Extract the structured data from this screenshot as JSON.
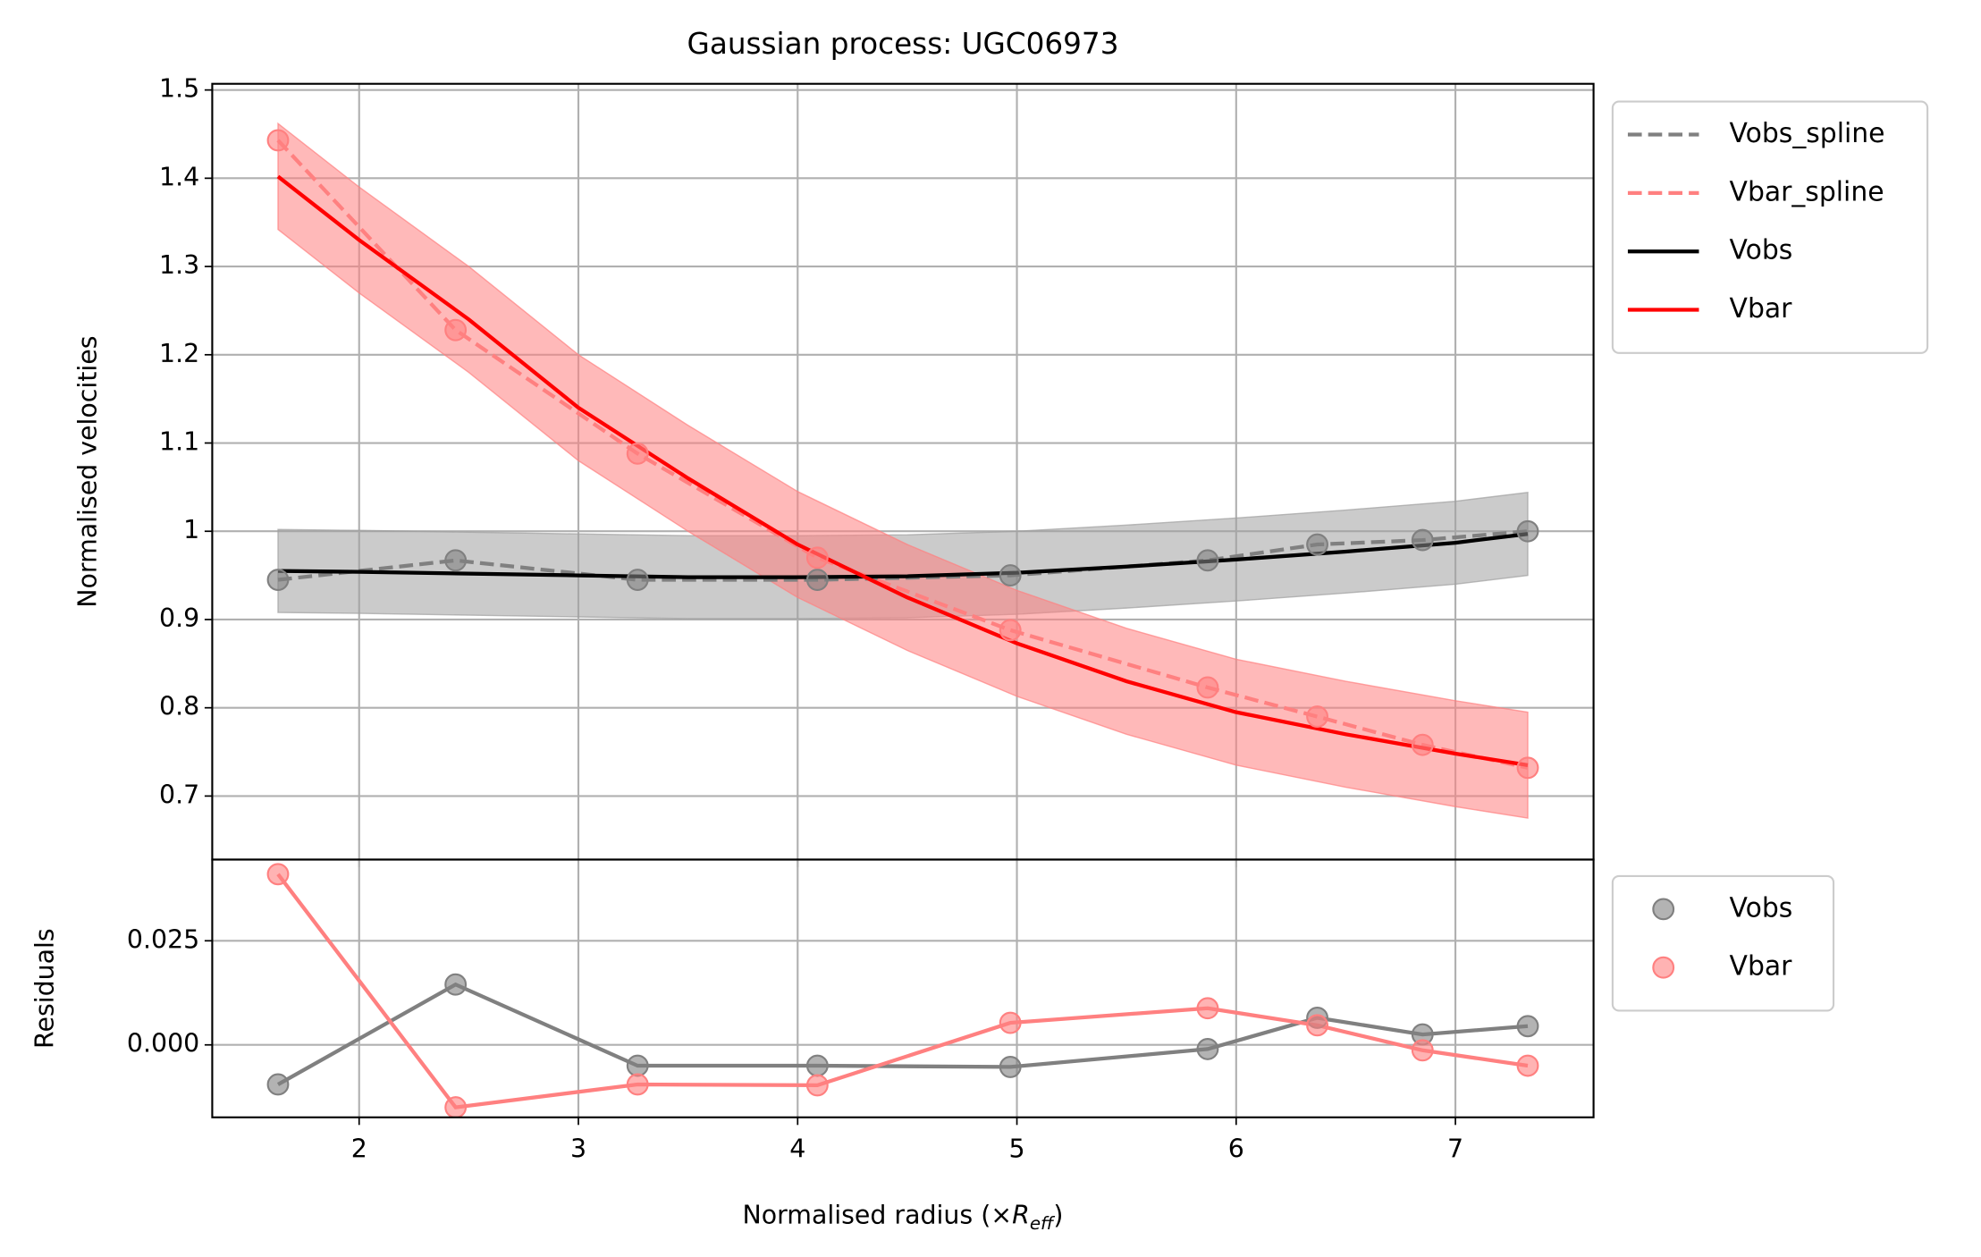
{
  "chart_data": [
    {
      "type": "line",
      "title": "Gaussian process: UGC06973",
      "ylabel": "Normalised velocities",
      "xlim": [
        1.33,
        7.63
      ],
      "xticks": [
        2,
        3,
        4,
        5,
        6,
        7
      ],
      "xticklabels": false,
      "ylim": [
        0.628,
        1.507
      ],
      "yticks": [
        0.7,
        0.8,
        0.9,
        1.0,
        1.1,
        1.2,
        1.3,
        1.4,
        1.5
      ],
      "grid": true,
      "legend": "outside upper right",
      "bands": [
        {
          "color": "#a0a0a0",
          "x": [
            1.63,
            2,
            2.5,
            3,
            3.5,
            4,
            4.5,
            5,
            5.5,
            6,
            6.5,
            7,
            7.33
          ],
          "lower": [
            0.908,
            0.907,
            0.905,
            0.903,
            0.901,
            0.901,
            0.902,
            0.906,
            0.913,
            0.921,
            0.93,
            0.94,
            0.95
          ],
          "upper": [
            1.002,
            1.001,
            0.999,
            0.997,
            0.995,
            0.995,
            0.996,
            1.0,
            1.007,
            1.015,
            1.024,
            1.034,
            1.044
          ]
        },
        {
          "color": "#ff8080",
          "x": [
            1.63,
            2,
            2.5,
            3,
            3.5,
            4,
            4.5,
            5,
            5.5,
            6,
            6.5,
            7,
            7.33
          ],
          "lower": [
            1.342,
            1.27,
            1.18,
            1.08,
            1.0,
            0.925,
            0.865,
            0.813,
            0.77,
            0.735,
            0.71,
            0.688,
            0.675
          ],
          "upper": [
            1.462,
            1.39,
            1.3,
            1.2,
            1.12,
            1.045,
            0.985,
            0.933,
            0.89,
            0.855,
            0.83,
            0.808,
            0.795
          ]
        }
      ],
      "series": [
        {
          "name": "Vobs_spline",
          "color": "#808080",
          "dashed": true,
          "markers": true,
          "marker_color": "#808080",
          "x": [
            1.63,
            2.44,
            3.27,
            4.09,
            4.97,
            5.87,
            6.37,
            6.85,
            7.33
          ],
          "values": [
            0.945,
            0.967,
            0.945,
            0.945,
            0.95,
            0.967,
            0.985,
            0.99,
            1.0
          ]
        },
        {
          "name": "Vbar_spline",
          "color": "#ff8080",
          "dashed": true,
          "markers": true,
          "marker_color": "#ff8080",
          "x": [
            1.63,
            2.44,
            3.27,
            4.09,
            4.97,
            5.87,
            6.37,
            6.85,
            7.33
          ],
          "values": [
            1.443,
            1.228,
            1.088,
            0.97,
            0.888,
            0.823,
            0.79,
            0.758,
            0.732
          ]
        },
        {
          "name": "Vobs",
          "color": "#000000",
          "dashed": false,
          "markers": false,
          "x": [
            1.63,
            2,
            2.5,
            3,
            3.5,
            4,
            4.5,
            5,
            5.5,
            6,
            6.5,
            7,
            7.33
          ],
          "values": [
            0.955,
            0.954,
            0.952,
            0.95,
            0.948,
            0.948,
            0.949,
            0.953,
            0.96,
            0.968,
            0.977,
            0.987,
            0.997
          ]
        },
        {
          "name": "Vbar",
          "color": "#ff0000",
          "dashed": false,
          "markers": false,
          "x": [
            1.63,
            2,
            2.5,
            3,
            3.5,
            4,
            4.5,
            5,
            5.5,
            6,
            6.5,
            7,
            7.33
          ],
          "values": [
            1.402,
            1.33,
            1.24,
            1.14,
            1.06,
            0.985,
            0.925,
            0.873,
            0.83,
            0.795,
            0.77,
            0.748,
            0.735
          ]
        }
      ]
    },
    {
      "type": "line",
      "ylabel": "Residuals",
      "xlabel": [
        "Normalised radius (×",
        "R",
        "eff",
        ")"
      ],
      "xlim": [
        1.33,
        7.63
      ],
      "xticks": [
        2,
        3,
        4,
        5,
        6,
        7
      ],
      "xticklabels": true,
      "ylim": [
        -0.0174,
        0.0445
      ],
      "yticks": [
        {
          "value": 0,
          "label": "0.000"
        },
        0.025
      ],
      "grid": true,
      "legend": "outside upper right",
      "series": [
        {
          "name": "Vobs",
          "color": "#808080",
          "dashed": false,
          "markers": true,
          "marker_color": "#808080",
          "x": [
            1.63,
            2.44,
            3.27,
            4.09,
            4.97,
            5.87,
            6.37,
            6.85,
            7.33
          ],
          "values": [
            -0.0095,
            0.0145,
            -0.005,
            -0.005,
            -0.0053,
            -0.001,
            0.0065,
            0.0025,
            0.0045
          ]
        },
        {
          "name": "Vbar",
          "color": "#ff8080",
          "dashed": false,
          "markers": true,
          "marker_color": "#ff8080",
          "x": [
            1.63,
            2.44,
            3.27,
            4.09,
            4.97,
            5.87,
            6.37,
            6.85,
            7.33
          ],
          "values": [
            0.041,
            -0.015,
            -0.0095,
            -0.0097,
            0.0053,
            0.0088,
            0.0047,
            -0.0013,
            -0.005
          ]
        }
      ]
    }
  ]
}
